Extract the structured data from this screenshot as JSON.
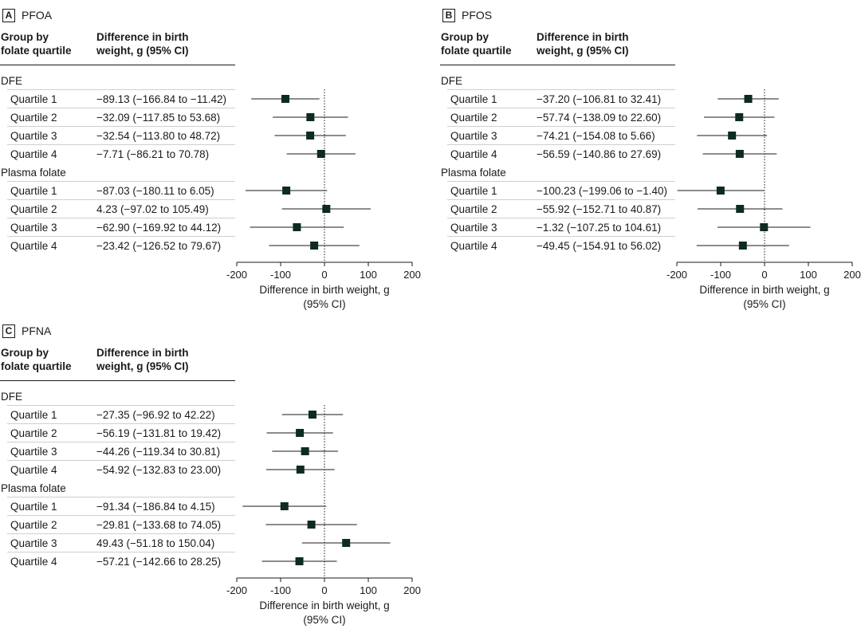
{
  "columns": {
    "group_line1": "Group by",
    "group_line2": "folate quartile",
    "diff_line1": "Difference in birth",
    "diff_line2": "weight, g (95% CI)"
  },
  "x_axis": {
    "ticks": [
      "-200",
      "-100",
      "0",
      "100",
      "200"
    ],
    "label_line1": "Difference in birth weight, g",
    "label_line2": "(95% CI)"
  },
  "panels": [
    {
      "letter": "A",
      "title": "PFOA",
      "groups": [
        {
          "name": "DFE",
          "rows": [
            {
              "label": "Quartile 1",
              "text": "−89.13 (−166.84 to −11.42)"
            },
            {
              "label": "Quartile 2",
              "text": "−32.09 (−117.85 to 53.68)"
            },
            {
              "label": "Quartile 3",
              "text": "−32.54 (−113.80 to 48.72)"
            },
            {
              "label": "Quartile 4",
              "text": "−7.71 (−86.21 to 70.78)"
            }
          ]
        },
        {
          "name": "Plasma folate",
          "rows": [
            {
              "label": "Quartile 1",
              "text": "−87.03 (−180.11 to 6.05)"
            },
            {
              "label": "Quartile 2",
              "text": "4.23 (−97.02 to 105.49)"
            },
            {
              "label": "Quartile 3",
              "text": "−62.90 (−169.92 to 44.12)"
            },
            {
              "label": "Quartile 4",
              "text": "−23.42 (−126.52 to 79.67)"
            }
          ]
        }
      ]
    },
    {
      "letter": "B",
      "title": "PFOS",
      "groups": [
        {
          "name": "DFE",
          "rows": [
            {
              "label": "Quartile 1",
              "text": "−37.20 (−106.81 to 32.41)"
            },
            {
              "label": "Quartile 2",
              "text": "−57.74 (−138.09 to 22.60)"
            },
            {
              "label": "Quartile 3",
              "text": "−74.21 (−154.08 to 5.66)"
            },
            {
              "label": "Quartile 4",
              "text": "−56.59 (−140.86 to 27.69)"
            }
          ]
        },
        {
          "name": "Plasma folate",
          "rows": [
            {
              "label": "Quartile 1",
              "text": "−100.23 (−199.06 to −1.40)"
            },
            {
              "label": "Quartile 2",
              "text": "−55.92 (−152.71 to 40.87)"
            },
            {
              "label": "Quartile 3",
              "text": "−1.32 (−107.25 to 104.61)"
            },
            {
              "label": "Quartile 4",
              "text": "−49.45 (−154.91 to 56.02)"
            }
          ]
        }
      ]
    },
    {
      "letter": "C",
      "title": "PFNA",
      "groups": [
        {
          "name": "DFE",
          "rows": [
            {
              "label": "Quartile 1",
              "text": "−27.35 (−96.92 to 42.22)"
            },
            {
              "label": "Quartile 2",
              "text": "−56.19 (−131.81 to 19.42)"
            },
            {
              "label": "Quartile 3",
              "text": "−44.26 (−119.34 to 30.81)"
            },
            {
              "label": "Quartile 4",
              "text": "−54.92 (−132.83 to 23.00)"
            }
          ]
        },
        {
          "name": "Plasma folate",
          "rows": [
            {
              "label": "Quartile 1",
              "text": "−91.34 (−186.84 to 4.15)"
            },
            {
              "label": "Quartile 2",
              "text": "−29.81 (−133.68 to 74.05)"
            },
            {
              "label": "Quartile 3",
              "text": "49.43 (−51.18 to 150.04)"
            },
            {
              "label": "Quartile 4",
              "text": "−57.21 (−142.66 to 28.25)"
            }
          ]
        }
      ]
    }
  ],
  "chart_data": [
    {
      "type": "forest",
      "title": "PFOA",
      "xlabel": "Difference in birth weight, g (95% CI)",
      "xlim": [
        -200,
        200
      ],
      "reference_line": 0,
      "series": [
        {
          "name": "DFE",
          "categories": [
            "Quartile 1",
            "Quartile 2",
            "Quartile 3",
            "Quartile 4"
          ],
          "estimate": [
            -89.13,
            -32.09,
            -32.54,
            -7.71
          ],
          "lower": [
            -166.84,
            -117.85,
            -113.8,
            -86.21
          ],
          "upper": [
            -11.42,
            53.68,
            48.72,
            70.78
          ]
        },
        {
          "name": "Plasma folate",
          "categories": [
            "Quartile 1",
            "Quartile 2",
            "Quartile 3",
            "Quartile 4"
          ],
          "estimate": [
            -87.03,
            4.23,
            -62.9,
            -23.42
          ],
          "lower": [
            -180.11,
            -97.02,
            -169.92,
            -126.52
          ],
          "upper": [
            6.05,
            105.49,
            44.12,
            79.67
          ]
        }
      ]
    },
    {
      "type": "forest",
      "title": "PFOS",
      "xlabel": "Difference in birth weight, g (95% CI)",
      "xlim": [
        -200,
        200
      ],
      "reference_line": 0,
      "series": [
        {
          "name": "DFE",
          "categories": [
            "Quartile 1",
            "Quartile 2",
            "Quartile 3",
            "Quartile 4"
          ],
          "estimate": [
            -37.2,
            -57.74,
            -74.21,
            -56.59
          ],
          "lower": [
            -106.81,
            -138.09,
            -154.08,
            -140.86
          ],
          "upper": [
            32.41,
            22.6,
            5.66,
            27.69
          ]
        },
        {
          "name": "Plasma folate",
          "categories": [
            "Quartile 1",
            "Quartile 2",
            "Quartile 3",
            "Quartile 4"
          ],
          "estimate": [
            -100.23,
            -55.92,
            -1.32,
            -49.45
          ],
          "lower": [
            -199.06,
            -152.71,
            -107.25,
            -154.91
          ],
          "upper": [
            -1.4,
            40.87,
            104.61,
            56.02
          ]
        }
      ]
    },
    {
      "type": "forest",
      "title": "PFNA",
      "xlabel": "Difference in birth weight, g (95% CI)",
      "xlim": [
        -200,
        200
      ],
      "reference_line": 0,
      "series": [
        {
          "name": "DFE",
          "categories": [
            "Quartile 1",
            "Quartile 2",
            "Quartile 3",
            "Quartile 4"
          ],
          "estimate": [
            -27.35,
            -56.19,
            -44.26,
            -54.92
          ],
          "lower": [
            -96.92,
            -131.81,
            -119.34,
            -132.83
          ],
          "upper": [
            42.22,
            19.42,
            30.81,
            23.0
          ]
        },
        {
          "name": "Plasma folate",
          "categories": [
            "Quartile 1",
            "Quartile 2",
            "Quartile 3",
            "Quartile 4"
          ],
          "estimate": [
            -91.34,
            -29.81,
            49.43,
            -57.21
          ],
          "lower": [
            -186.84,
            -133.68,
            -51.18,
            -142.66
          ],
          "upper": [
            4.15,
            74.05,
            150.04,
            28.25
          ]
        }
      ]
    }
  ]
}
